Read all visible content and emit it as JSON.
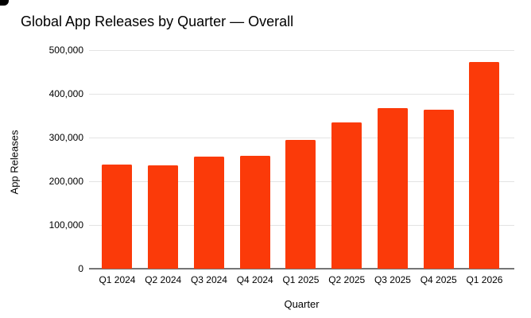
{
  "chart_data": {
    "type": "bar",
    "title": "Global App Releases by Quarter — Overall",
    "xlabel": "Quarter",
    "ylabel": "App Releases",
    "categories": [
      "Q1 2024",
      "Q2 2024",
      "Q3 2024",
      "Q4 2024",
      "Q1 2025",
      "Q2 2025",
      "Q3 2025",
      "Q4 2025",
      "Q1 2026"
    ],
    "values": [
      238000,
      236000,
      256000,
      258000,
      294000,
      335000,
      367000,
      363000,
      472000
    ],
    "series": [
      {
        "name": "App Releases",
        "values": [
          238000,
          236000,
          256000,
          258000,
          294000,
          335000,
          367000,
          363000,
          472000
        ]
      }
    ],
    "ylim": [
      0,
      500000
    ],
    "ytick_interval": 100000,
    "ytick_labels": [
      "0",
      "100,000",
      "200,000",
      "300,000",
      "400,000",
      "500,000"
    ],
    "grid": "horizontal-only",
    "legend_position": "none",
    "colors": {
      "bar": "#fb3a09",
      "gridline": "#e3e3e3",
      "zero_axis": "#757575",
      "text": "#000000",
      "background": "#ffffff"
    }
  }
}
